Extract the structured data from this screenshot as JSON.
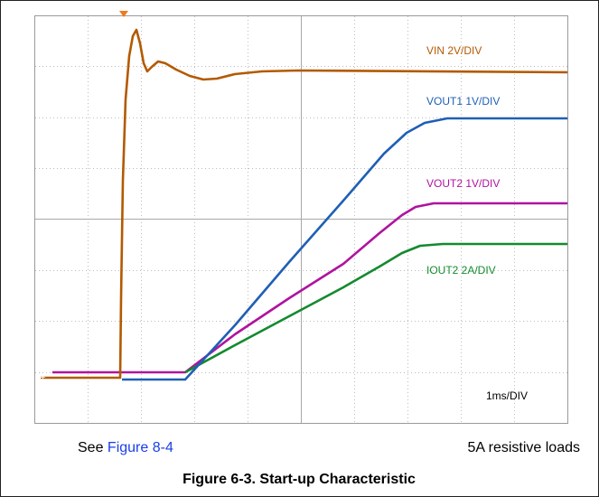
{
  "figure": {
    "traces": [
      {
        "label": "VIN 2V/DIV"
      },
      {
        "label": "VOUT1 1V/DIV"
      },
      {
        "label": "VOUT2 1V/DIV"
      },
      {
        "label": "IOUT2 2A/DIV"
      }
    ],
    "timebase": "1ms/DIV",
    "note_prefix": "See ",
    "note_link": "Figure 8-4",
    "load_note": "5A resistive loads",
    "caption": "Figure 6-3. Start-up Characteristic"
  }
}
